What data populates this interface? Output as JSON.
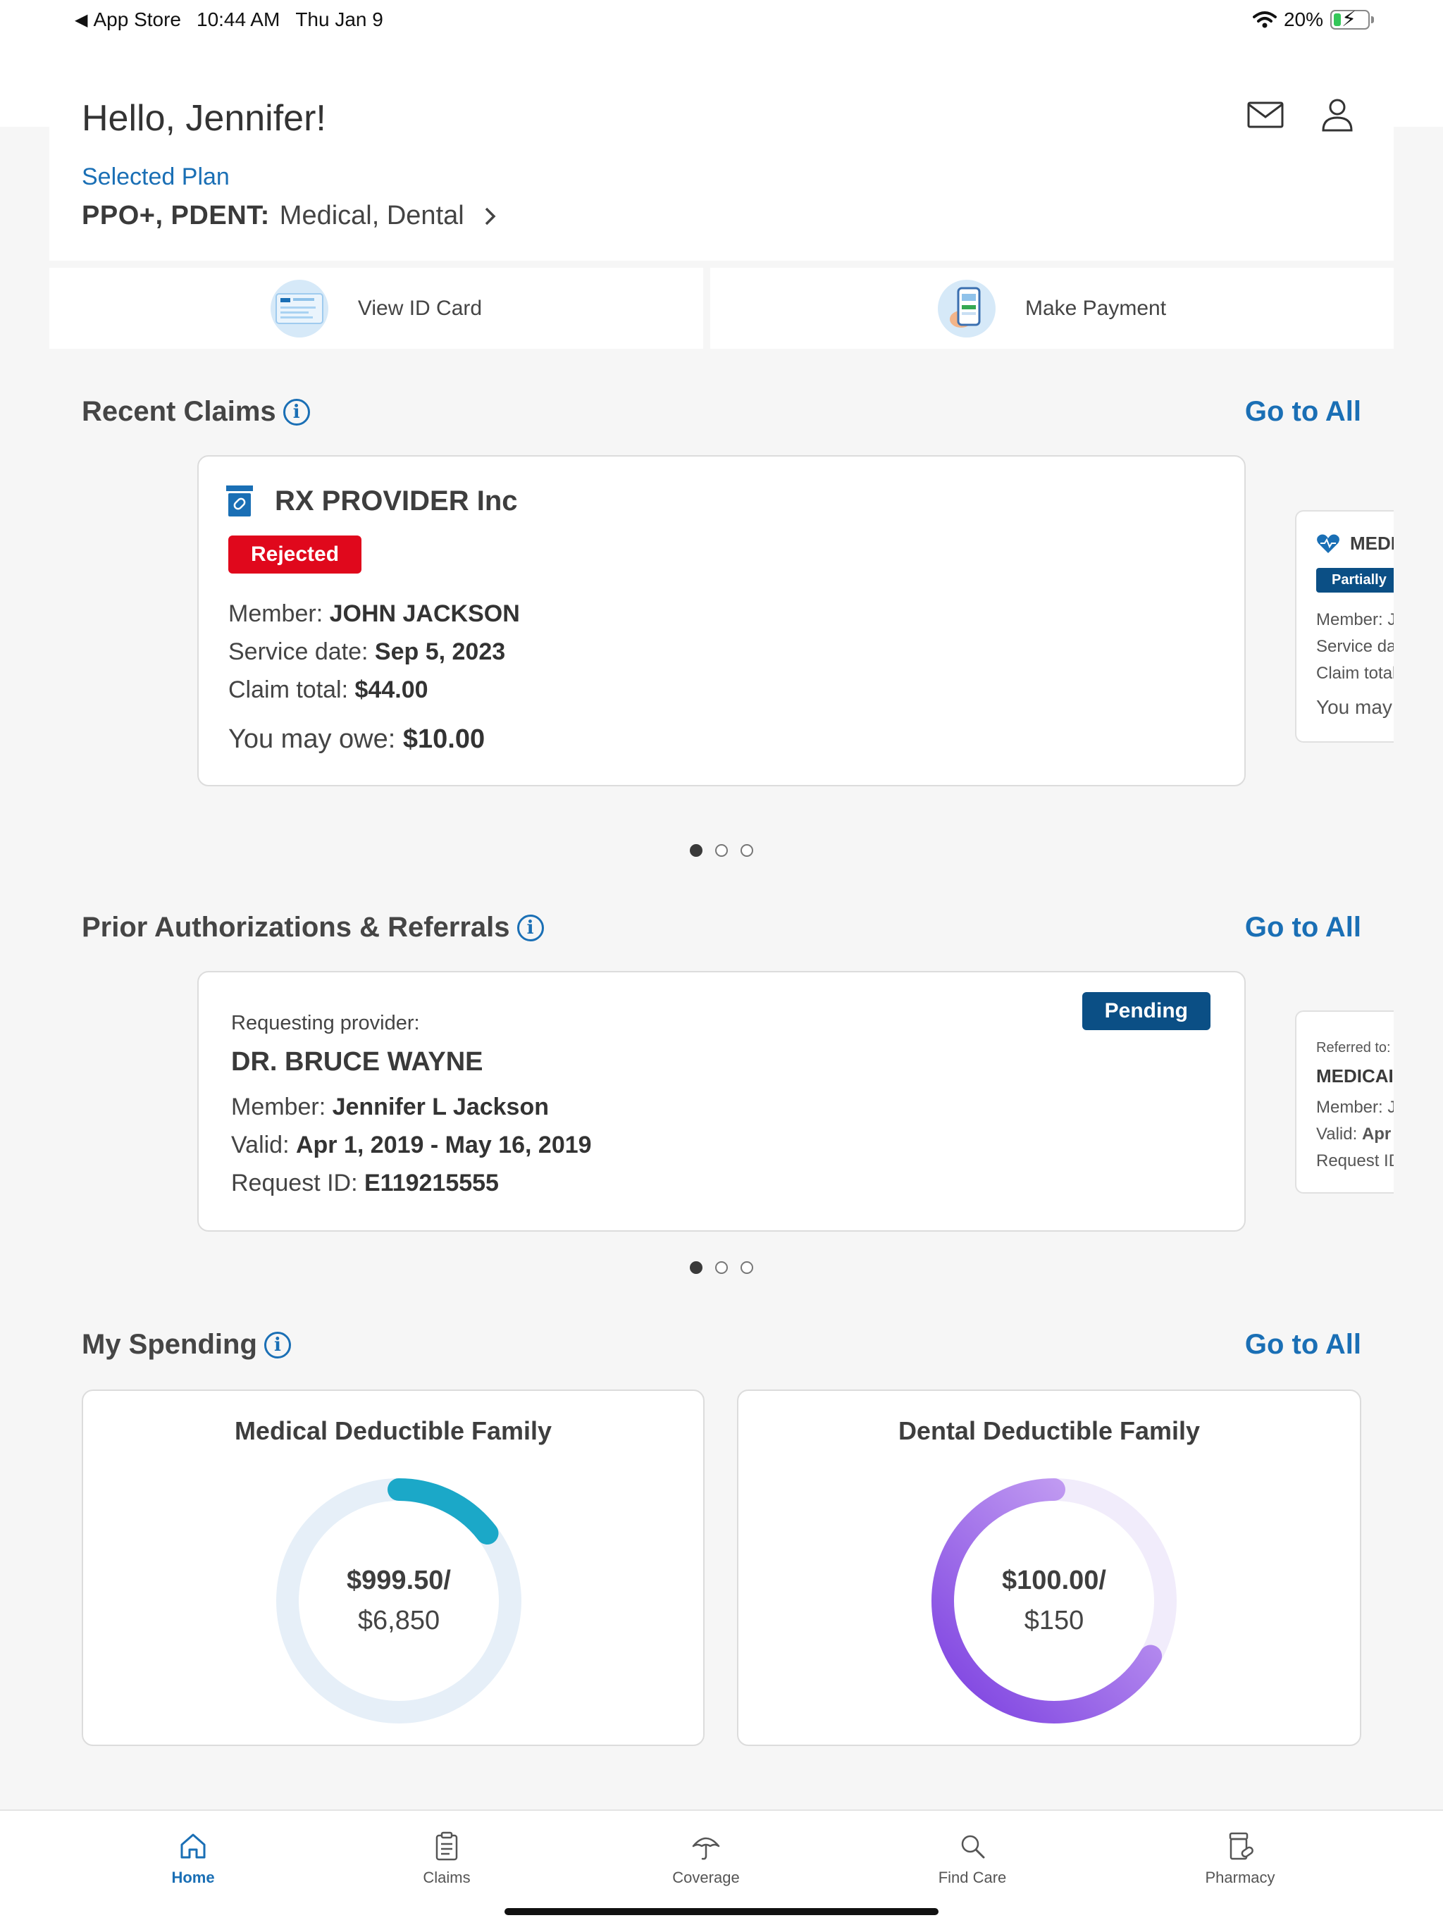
{
  "status_bar": {
    "back_app": "App Store",
    "time": "10:44 AM",
    "date": "Thu Jan 9",
    "battery": "20%"
  },
  "header": {
    "greeting": "Hello, Jennifer!",
    "selected_plan_label": "Selected Plan",
    "plan_code": "PPO+, PDENT:",
    "plan_types": "Medical, Dental"
  },
  "quick_actions": {
    "id_card": "View ID Card",
    "payment": "Make Payment"
  },
  "recent_claims": {
    "title": "Recent Claims",
    "go_all": "Go to All",
    "card": {
      "provider": "RX PROVIDER Inc",
      "status": "Rejected",
      "member_label": "Member:",
      "member": "JOHN JACKSON",
      "service_label": "Service date:",
      "service_date": "Sep 5, 2023",
      "total_label": "Claim total:",
      "total": "$44.00",
      "owe_label": "You may owe:",
      "owe": "$10.00"
    },
    "peek": {
      "provider": "MEDI",
      "status": "Partially",
      "member": "Member: J",
      "service": "Service dat",
      "total": "Claim total",
      "owe": "You may"
    }
  },
  "prior_auth": {
    "title": "Prior Authorizations & Referrals",
    "go_all": "Go to All",
    "card": {
      "status": "Pending",
      "requesting_label": "Requesting provider:",
      "provider": "DR. BRUCE WAYNE",
      "member_label": "Member:",
      "member": "Jennifer L Jackson",
      "valid_label": "Valid:",
      "valid": "Apr 1, 2019 - May 16, 2019",
      "request_label": "Request ID:",
      "request_id": "E119215555"
    },
    "peek": {
      "referred": "Referred to:",
      "provider": "MEDICAI",
      "member": "Member: J",
      "valid_label": "Valid:",
      "valid": "Apr",
      "request": "Request ID"
    }
  },
  "spending": {
    "title": "My Spending",
    "go_all": "Go to All",
    "medical": {
      "title": "Medical Deductible Family",
      "amount": "$999.50/",
      "total": "$6,850",
      "fraction": 0.146,
      "color": "#1ba8c8",
      "track": "#e6eff8"
    },
    "dental": {
      "title": "Dental Deductible Family",
      "amount": "$100.00/",
      "total": "$150",
      "fraction": 0.667,
      "color": "#9b5de5",
      "track": "#f1ecfb"
    }
  },
  "tabs": {
    "home": "Home",
    "claims": "Claims",
    "coverage": "Coverage",
    "find_care": "Find Care",
    "pharmacy": "Pharmacy"
  },
  "colors": {
    "accent": "#1a6fb5",
    "rejected": "#e0081c",
    "pending": "#0b4f85"
  }
}
